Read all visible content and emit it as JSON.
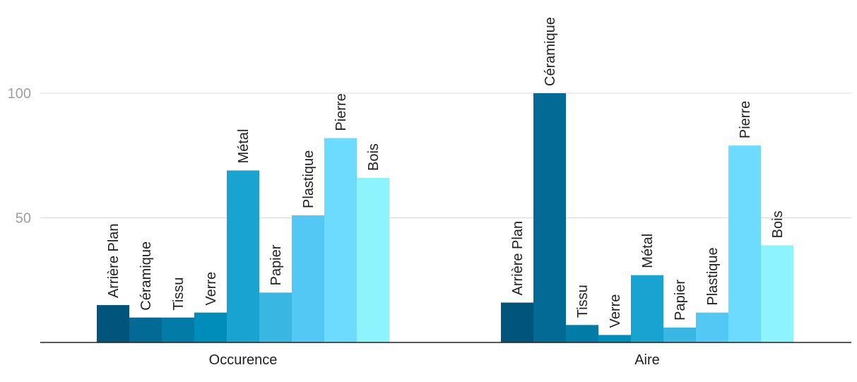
{
  "chart_data": {
    "type": "bar",
    "categories": [
      "Occurence",
      "Aire"
    ],
    "series": [
      {
        "name": "Arrière Plan",
        "values": [
          15,
          16
        ],
        "color": "#01557d"
      },
      {
        "name": "Céramique",
        "values": [
          10,
          100
        ],
        "color": "#026a94"
      },
      {
        "name": "Tissu",
        "values": [
          10,
          7
        ],
        "color": "#027ba6"
      },
      {
        "name": "Verre",
        "values": [
          12,
          3
        ],
        "color": "#008db9"
      },
      {
        "name": "Métal",
        "values": [
          69,
          27
        ],
        "color": "#18a3d0"
      },
      {
        "name": "Papier",
        "values": [
          20,
          6
        ],
        "color": "#3ab6e2"
      },
      {
        "name": "Plastique",
        "values": [
          51,
          12
        ],
        "color": "#54c8f5"
      },
      {
        "name": "Pierre",
        "values": [
          82,
          79
        ],
        "color": "#6cdbfd"
      },
      {
        "name": "Bois",
        "values": [
          66,
          39
        ],
        "color": "#8df4fd"
      }
    ],
    "yticks": [
      50,
      100
    ],
    "ylim": [
      0,
      100
    ],
    "grid": true,
    "legend": "none",
    "bar_labels": "series-name-rotated"
  }
}
